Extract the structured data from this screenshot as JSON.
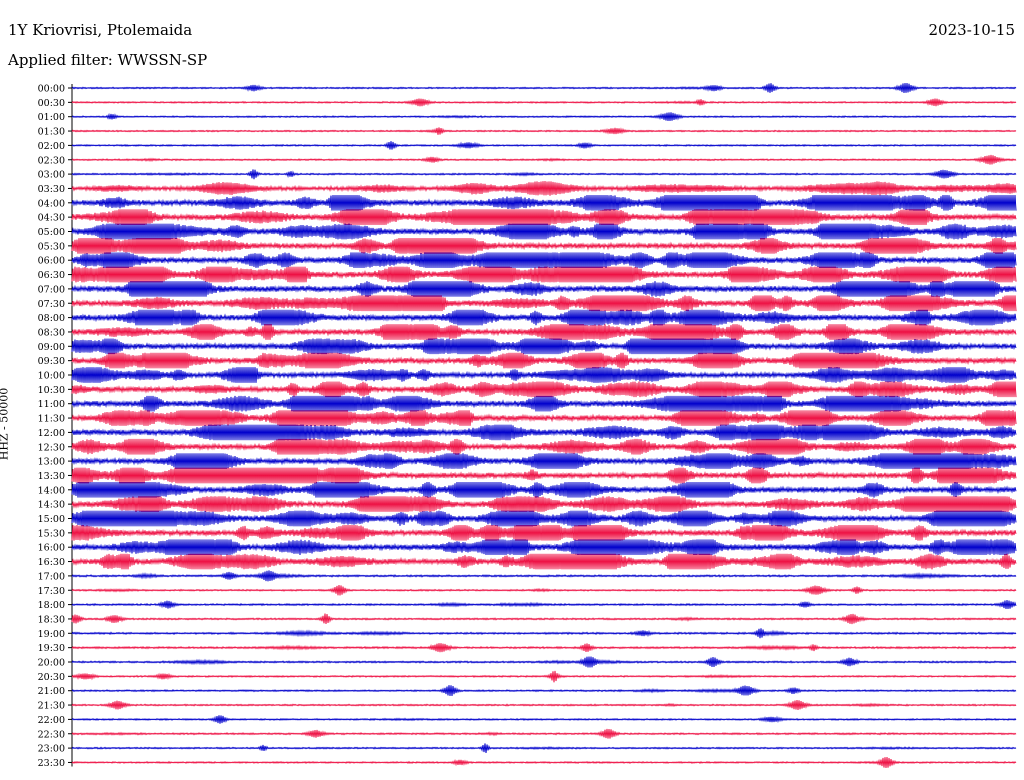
{
  "header": {
    "station": "1Y Kriovrisi, Ptolemaida",
    "date": "2023-10-15",
    "filter": "Applied filter: WWSSN-SP"
  },
  "chart_data": {
    "type": "line",
    "title": "1Y Kriovrisi, Ptolemaida",
    "subtitle": "Applied filter: WWSSN-SP",
    "date": "2023-10-15",
    "ylabel": "HHZ - 50000",
    "xlabel": "",
    "grid": false,
    "trace_colors": [
      "#0000cc",
      "#ee1144"
    ],
    "rows": [
      {
        "time": "00:00",
        "activity": 0.05
      },
      {
        "time": "00:30",
        "activity": 0.05
      },
      {
        "time": "01:00",
        "activity": 0.04
      },
      {
        "time": "01:30",
        "activity": 0.04
      },
      {
        "time": "02:00",
        "activity": 0.05
      },
      {
        "time": "02:30",
        "activity": 0.06
      },
      {
        "time": "03:00",
        "activity": 0.07
      },
      {
        "time": "03:30",
        "activity": 0.55
      },
      {
        "time": "04:00",
        "activity": 0.85
      },
      {
        "time": "04:30",
        "activity": 0.85
      },
      {
        "time": "05:00",
        "activity": 0.9
      },
      {
        "time": "05:30",
        "activity": 0.8
      },
      {
        "time": "06:00",
        "activity": 0.85
      },
      {
        "time": "06:30",
        "activity": 0.9
      },
      {
        "time": "07:00",
        "activity": 0.95
      },
      {
        "time": "07:30",
        "activity": 0.9
      },
      {
        "time": "08:00",
        "activity": 0.9
      },
      {
        "time": "08:30",
        "activity": 0.85
      },
      {
        "time": "09:00",
        "activity": 0.8
      },
      {
        "time": "09:30",
        "activity": 0.85
      },
      {
        "time": "10:00",
        "activity": 0.7
      },
      {
        "time": "10:30",
        "activity": 0.8
      },
      {
        "time": "11:00",
        "activity": 0.9
      },
      {
        "time": "11:30",
        "activity": 0.85
      },
      {
        "time": "12:00",
        "activity": 0.85
      },
      {
        "time": "12:30",
        "activity": 0.8
      },
      {
        "time": "13:00",
        "activity": 0.8
      },
      {
        "time": "13:30",
        "activity": 0.85
      },
      {
        "time": "14:00",
        "activity": 0.85
      },
      {
        "time": "14:30",
        "activity": 0.85
      },
      {
        "time": "15:00",
        "activity": 0.85
      },
      {
        "time": "15:30",
        "activity": 0.85
      },
      {
        "time": "16:00",
        "activity": 0.9
      },
      {
        "time": "16:30",
        "activity": 0.85
      },
      {
        "time": "17:00",
        "activity": 0.12
      },
      {
        "time": "17:30",
        "activity": 0.06
      },
      {
        "time": "18:00",
        "activity": 0.1
      },
      {
        "time": "18:30",
        "activity": 0.09
      },
      {
        "time": "19:00",
        "activity": 0.12
      },
      {
        "time": "19:30",
        "activity": 0.12
      },
      {
        "time": "20:00",
        "activity": 0.1
      },
      {
        "time": "20:30",
        "activity": 0.06
      },
      {
        "time": "21:00",
        "activity": 0.07
      },
      {
        "time": "21:30",
        "activity": 0.06
      },
      {
        "time": "22:00",
        "activity": 0.05
      },
      {
        "time": "22:30",
        "activity": 0.09
      },
      {
        "time": "23:00",
        "activity": 0.06
      },
      {
        "time": "23:30",
        "activity": 0.05
      }
    ]
  }
}
